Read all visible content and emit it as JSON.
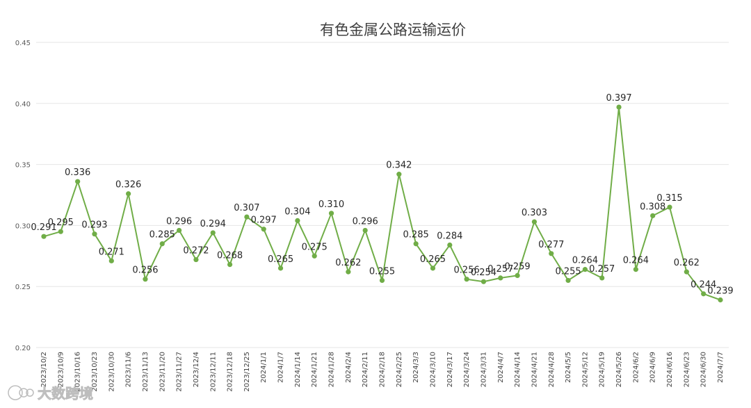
{
  "chart_data": {
    "type": "line",
    "title": "有色金属公路运输运价",
    "xlabel": "",
    "ylabel": "",
    "ylim": [
      0.2,
      0.45
    ],
    "yticks": [
      "0.20",
      "0.25",
      "0.30",
      "0.35",
      "0.40",
      "0.45"
    ],
    "grid": true,
    "legend": "none",
    "color": "#70ad47",
    "categories": [
      "2023/10/2",
      "2023/10/9",
      "2023/10/16",
      "2023/10/23",
      "2023/10/30",
      "2023/11/6",
      "2023/11/13",
      "2023/11/20",
      "2023/11/27",
      "2023/12/4",
      "2023/12/11",
      "2023/12/18",
      "2023/12/25",
      "2024/1/1",
      "2024/1/7",
      "2024/1/14",
      "2024/1/21",
      "2024/1/28",
      "2024/2/4",
      "2024/2/11",
      "2024/2/18",
      "2024/2/25",
      "2024/3/3",
      "2024/3/10",
      "2024/3/17",
      "2024/3/24",
      "2024/3/31",
      "2024/4/7",
      "2024/4/14",
      "2024/4/21",
      "2024/4/28",
      "2024/5/5",
      "2024/5/12",
      "2024/5/19",
      "2024/5/26",
      "2024/6/2",
      "2024/6/9",
      "2024/6/16",
      "2024/6/23",
      "2024/6/30",
      "2024/7/7"
    ],
    "series": [
      {
        "name": "",
        "values": [
          0.291,
          0.295,
          0.336,
          0.293,
          0.271,
          0.326,
          0.256,
          0.285,
          0.296,
          0.272,
          0.294,
          0.268,
          0.307,
          0.297,
          0.265,
          0.304,
          0.275,
          0.31,
          0.262,
          0.296,
          0.255,
          0.342,
          0.285,
          0.265,
          0.284,
          0.256,
          0.254,
          0.257,
          0.259,
          0.303,
          0.277,
          0.255,
          0.264,
          0.257,
          0.397,
          0.264,
          0.308,
          0.315,
          0.262,
          0.244,
          0.239
        ],
        "labels": [
          "0.291",
          "0.295",
          "0.336",
          "0.293",
          "0.271",
          "0.326",
          "0.256",
          "0.285",
          "0.296",
          "0.272",
          "0.294",
          "0.268",
          "0.307",
          "0.297",
          "0.265",
          "0.304",
          "0.275",
          "0.310",
          "0.262",
          "0.296",
          "0.255",
          "0.342",
          "0.285",
          "0.265",
          "0.284",
          "0.256",
          "0.254",
          "0.257",
          "0.259",
          "0.303",
          "0.277",
          "0.255",
          "0.264",
          "0.257",
          "0.397",
          "0.264",
          "0.308",
          "0.315",
          "0.262",
          "0.244",
          "0.239"
        ]
      }
    ]
  },
  "watermark": {
    "text": "大数跨境",
    "icon": "watermark-logo-icon"
  }
}
